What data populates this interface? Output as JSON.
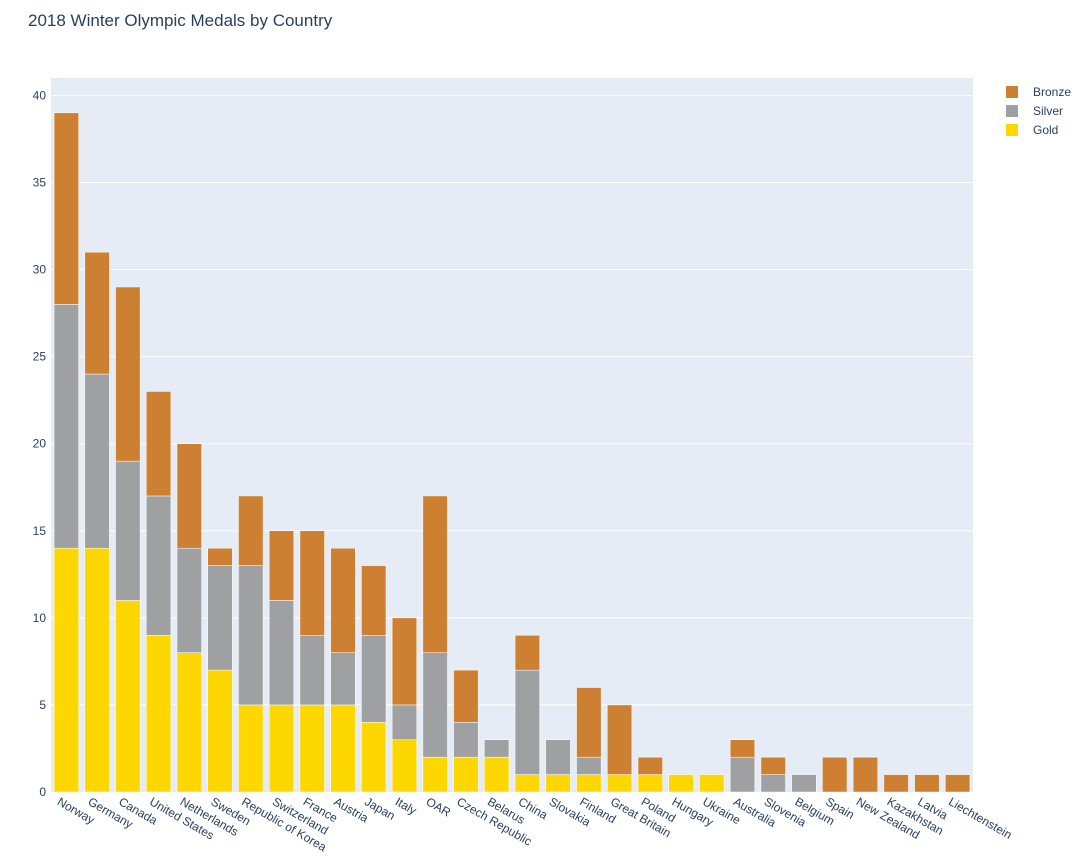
{
  "chart_data": {
    "type": "bar",
    "stacked": true,
    "title": "2018 Winter Olympic Medals by Country",
    "xlabel": "",
    "ylabel": "",
    "ylim": [
      0,
      41
    ],
    "yticks": [
      0,
      5,
      10,
      15,
      20,
      25,
      30,
      35,
      40
    ],
    "grid": true,
    "legend_position": "top-right",
    "categories": [
      "Norway",
      "Germany",
      "Canada",
      "United States",
      "Netherlands",
      "Sweden",
      "Republic of Korea",
      "Switzerland",
      "France",
      "Austria",
      "Japan",
      "Italy",
      "OAR",
      "Czech Republic",
      "Belarus",
      "China",
      "Slovakia",
      "Finland",
      "Great Britain",
      "Poland",
      "Hungary",
      "Ukraine",
      "Australia",
      "Slovenia",
      "Belgium",
      "Spain",
      "New Zealand",
      "Kazakhstan",
      "Latvia",
      "Liechtenstein"
    ],
    "series": [
      {
        "name": "Gold",
        "color": "#FFD700",
        "values": [
          14,
          14,
          11,
          9,
          8,
          7,
          5,
          5,
          5,
          5,
          4,
          3,
          2,
          2,
          2,
          1,
          1,
          1,
          1,
          1,
          1,
          1,
          0,
          0,
          0,
          0,
          0,
          0,
          0,
          0
        ]
      },
      {
        "name": "Silver",
        "color": "#9EA0A1",
        "values": [
          14,
          10,
          8,
          8,
          6,
          6,
          8,
          6,
          4,
          3,
          5,
          2,
          6,
          2,
          1,
          6,
          2,
          1,
          0,
          0,
          0,
          0,
          2,
          1,
          1,
          0,
          0,
          0,
          0,
          0
        ]
      },
      {
        "name": "Bronze",
        "color": "#CD7F32",
        "values": [
          11,
          7,
          10,
          6,
          6,
          1,
          4,
          4,
          6,
          6,
          4,
          5,
          9,
          3,
          0,
          2,
          0,
          4,
          4,
          1,
          0,
          0,
          1,
          1,
          0,
          2,
          2,
          1,
          1,
          1
        ]
      }
    ],
    "legend_order": [
      "Bronze",
      "Silver",
      "Gold"
    ]
  }
}
